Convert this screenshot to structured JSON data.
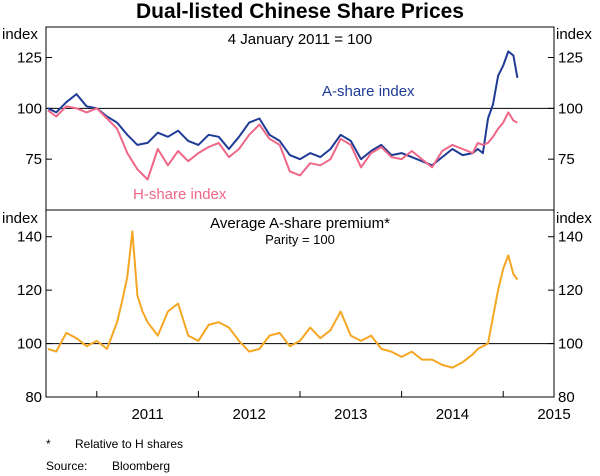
{
  "title": "Dual-listed Chinese Share Prices",
  "footnote_mark": "*",
  "footnote_text": "Relative to H shares",
  "source_label": "Source:",
  "source_text": "Bloomberg",
  "colors": {
    "a_share": "#1f3b95",
    "h_share": "#ef6786",
    "premium": "#f5a623",
    "axis": "#000000"
  },
  "chart_data": [
    {
      "type": "line",
      "subtitle": "4 January 2011 = 100",
      "ylabel_left": "index",
      "ylabel_right": "index",
      "ylim": [
        50,
        140
      ],
      "yticks": [
        75,
        100,
        125
      ],
      "reference_line": 100,
      "xlim": [
        2010.5,
        2015.5
      ],
      "series": [
        {
          "name": "A-share index",
          "label": "A-share index",
          "color": "#1f3b95",
          "x": [
            2010.52,
            2010.6,
            2010.7,
            2010.8,
            2010.9,
            2011.0,
            2011.1,
            2011.2,
            2011.3,
            2011.4,
            2011.5,
            2011.6,
            2011.7,
            2011.8,
            2011.9,
            2012.0,
            2012.1,
            2012.2,
            2012.3,
            2012.4,
            2012.5,
            2012.6,
            2012.7,
            2012.8,
            2012.9,
            2013.0,
            2013.1,
            2013.2,
            2013.3,
            2013.4,
            2013.5,
            2013.6,
            2013.7,
            2013.8,
            2013.9,
            2014.0,
            2014.1,
            2014.2,
            2014.3,
            2014.4,
            2014.5,
            2014.6,
            2014.7,
            2014.75,
            2014.8,
            2014.85,
            2014.9,
            2014.95,
            2015.0,
            2015.05,
            2015.1,
            2015.14
          ],
          "values": [
            100,
            98,
            103,
            107,
            101,
            100,
            96,
            93,
            87,
            82,
            83,
            88,
            86,
            89,
            84,
            82,
            87,
            86,
            80,
            86,
            93,
            95,
            87,
            84,
            77,
            75,
            78,
            76,
            80,
            87,
            84,
            75,
            79,
            82,
            77,
            78,
            76,
            74,
            72,
            76,
            80,
            77,
            78,
            80,
            78,
            95,
            102,
            116,
            121,
            128,
            126,
            115
          ]
        },
        {
          "name": "H-share index",
          "label": "H-share index",
          "color": "#ef6786",
          "x": [
            2010.52,
            2010.6,
            2010.7,
            2010.8,
            2010.9,
            2011.0,
            2011.1,
            2011.2,
            2011.3,
            2011.4,
            2011.5,
            2011.6,
            2011.7,
            2011.8,
            2011.9,
            2012.0,
            2012.1,
            2012.2,
            2012.3,
            2012.4,
            2012.5,
            2012.6,
            2012.7,
            2012.8,
            2012.9,
            2013.0,
            2013.1,
            2013.2,
            2013.3,
            2013.4,
            2013.5,
            2013.6,
            2013.7,
            2013.8,
            2013.9,
            2014.0,
            2014.1,
            2014.2,
            2014.3,
            2014.4,
            2014.5,
            2014.6,
            2014.7,
            2014.75,
            2014.8,
            2014.85,
            2014.9,
            2014.95,
            2015.0,
            2015.05,
            2015.1,
            2015.14
          ],
          "values": [
            99,
            96,
            101,
            100,
            98,
            100,
            95,
            90,
            78,
            70,
            65,
            80,
            72,
            79,
            74,
            78,
            81,
            83,
            76,
            80,
            87,
            92,
            85,
            82,
            69,
            67,
            73,
            72,
            75,
            85,
            82,
            71,
            78,
            81,
            76,
            75,
            79,
            75,
            71,
            79,
            82,
            80,
            78,
            83,
            82,
            83,
            86,
            90,
            93,
            98,
            94,
            93
          ]
        }
      ]
    },
    {
      "type": "line",
      "subtitle": "Average A-share premium*",
      "subtitle2": "Parity = 100",
      "ylabel_left": "index",
      "ylabel_right": "index",
      "ylim": [
        80,
        150
      ],
      "yticks": [
        80,
        100,
        120,
        140
      ],
      "reference_line": 100,
      "xlim": [
        2010.5,
        2015.5
      ],
      "xticks": [
        "2011",
        "2012",
        "2013",
        "2014",
        "2015"
      ],
      "series": [
        {
          "name": "Average A-share premium",
          "color": "#f5a623",
          "x": [
            2010.52,
            2010.6,
            2010.7,
            2010.8,
            2010.9,
            2011.0,
            2011.1,
            2011.15,
            2011.2,
            2011.25,
            2011.3,
            2011.35,
            2011.4,
            2011.45,
            2011.5,
            2011.6,
            2011.7,
            2011.8,
            2011.9,
            2012.0,
            2012.1,
            2012.2,
            2012.3,
            2012.4,
            2012.5,
            2012.6,
            2012.7,
            2012.8,
            2012.9,
            2013.0,
            2013.1,
            2013.2,
            2013.3,
            2013.4,
            2013.5,
            2013.6,
            2013.7,
            2013.8,
            2013.9,
            2014.0,
            2014.1,
            2014.2,
            2014.3,
            2014.4,
            2014.5,
            2014.6,
            2014.7,
            2014.75,
            2014.8,
            2014.85,
            2014.9,
            2014.95,
            2015.0,
            2015.05,
            2015.1,
            2015.14
          ],
          "values": [
            98,
            97,
            104,
            102,
            99,
            101,
            98,
            103,
            108,
            116,
            125,
            142,
            118,
            112,
            108,
            103,
            112,
            115,
            103,
            101,
            107,
            108,
            106,
            101,
            97,
            98,
            103,
            104,
            99,
            101,
            106,
            102,
            105,
            112,
            103,
            101,
            103,
            98,
            97,
            95,
            97,
            94,
            94,
            92,
            91,
            93,
            96,
            98,
            99,
            100,
            110,
            120,
            128,
            133,
            126,
            124
          ]
        }
      ]
    }
  ]
}
